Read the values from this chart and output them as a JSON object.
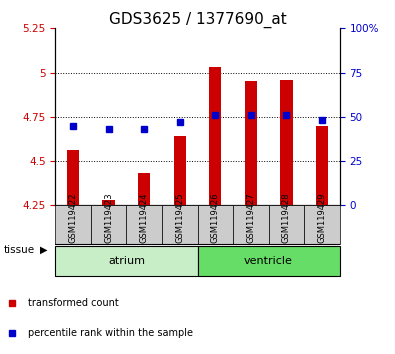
{
  "title": "GDS3625 / 1377690_at",
  "samples": [
    "GSM119422",
    "GSM119423",
    "GSM119424",
    "GSM119425",
    "GSM119426",
    "GSM119427",
    "GSM119428",
    "GSM119429"
  ],
  "red_values": [
    4.56,
    4.28,
    4.43,
    4.64,
    5.03,
    4.95,
    4.96,
    4.7
  ],
  "blue_values": [
    45,
    43,
    43,
    47,
    51,
    51,
    51,
    48
  ],
  "ylim_left": [
    4.25,
    5.25
  ],
  "ylim_right": [
    0,
    100
  ],
  "yticks_left": [
    4.25,
    4.5,
    4.75,
    5.0,
    5.25
  ],
  "yticks_right": [
    0,
    25,
    50,
    75,
    100
  ],
  "ytick_labels_left": [
    "4.25",
    "4.5",
    "4.75",
    "5",
    "5.25"
  ],
  "ytick_labels_right": [
    "0",
    "25",
    "50",
    "75",
    "100%"
  ],
  "bar_bottom": 4.25,
  "grid_ticks": [
    4.5,
    4.75,
    5.0
  ],
  "atrium_color": "#c8eec8",
  "ventricle_color": "#66dd66",
  "sample_bg_color": "#cccccc",
  "tissue_label": "tissue",
  "red_color": "#cc0000",
  "blue_color": "#0000cc",
  "legend_red": "transformed count",
  "legend_blue": "percentile rank within the sample",
  "bar_width": 0.35,
  "blue_marker_size": 4,
  "title_fontsize": 11,
  "tick_fontsize": 7.5,
  "sample_fontsize": 6,
  "axis_left_color": "#cc0000",
  "axis_right_color": "#0000cc"
}
